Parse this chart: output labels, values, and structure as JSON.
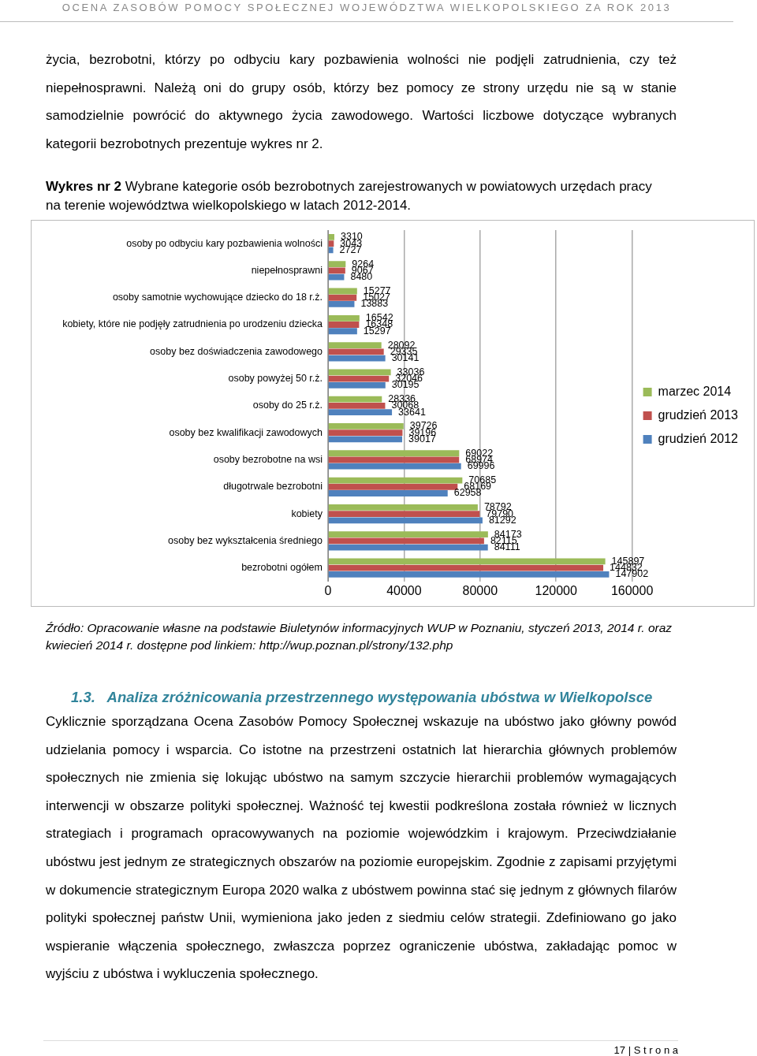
{
  "chart_data": {
    "type": "bar",
    "orientation": "horizontal",
    "title": "Wykres nr 2",
    "subtitle": "Wybrane kategorie osób bezrobotnych zarejestrowanych w powiatowych urzędach pracy na terenie województwa wielkopolskiego w latach 2012-2014.",
    "categories": [
      "osoby po odbyciu kary pozbawienia wolności",
      "niepełnosprawni",
      "osoby samotnie wychowujące dziecko do 18 r.ż.",
      "kobiety, które nie podjęły zatrudnienia po urodzeniu dziecka",
      "osoby bez doświadczenia zawodowego",
      "osoby powyżej 50 r.ż.",
      "osoby do 25 r.ż.",
      "osoby bez kwalifikacji zawodowych",
      "osoby bezrobotne na wsi",
      "długotrwale bezrobotni",
      "kobiety",
      "osoby bez wykształcenia średniego",
      "bezrobotni ogółem"
    ],
    "series": [
      {
        "name": "marzec 2014",
        "color": "#9bbb59",
        "values": [
          3310,
          9264,
          15277,
          16542,
          28092,
          33036,
          28336,
          39726,
          69022,
          70685,
          78792,
          84173,
          145897
        ]
      },
      {
        "name": "grudzień 2013",
        "color": "#c0504d",
        "values": [
          3043,
          9067,
          15027,
          16348,
          29335,
          32046,
          30068,
          39196,
          68974,
          68169,
          79790,
          82115,
          144832
        ]
      },
      {
        "name": "grudzień 2012",
        "color": "#4f81bd",
        "values": [
          2727,
          8480,
          13883,
          15297,
          30141,
          30195,
          33641,
          39017,
          69996,
          62958,
          81292,
          84111,
          147902
        ]
      }
    ],
    "xlim": [
      0,
      160000
    ],
    "xticks": [
      0,
      40000,
      80000,
      120000,
      160000
    ],
    "grid": "x",
    "legend": "right",
    "data_labels": true,
    "annotations": [
      "OCENA ZASOBÓW POMOCY SPOŁECZNEJ WOJEWÓDZTWA WIELKOPOLSKIEGO ZA ROK 2013",
      "życia, bezrobotni, którzy po odbyciu kary pozbawienia wolności nie podjęli zatrudnienia, czy też niepełnosprawni. Należą oni do grupy osób, którzy bez pomocy ze strony urzędu nie są w stanie samodzielnie powrócić do aktywnego życia zawodowego. Wartości liczbowe dotyczące wybranych kategorii bezrobotnych prezentuje wykres nr 2.",
      "Źródło: Opracowanie własne na podstawie Biuletynów informacyjnych WUP w Poznaniu, styczeń 2013, 2014 r. oraz kwiecień 2014 r. dostępne pod linkiem: http://wup.poznan.pl/strony/132.php",
      "1.3.   Analiza zróżnicowania przestrzennego występowania ubóstwa w Wielkopolsce",
      "Cyklicznie sporządzana Ocena Zasobów Pomocy Społecznej wskazuje na ubóstwo jako główny powód udzielania pomocy i wsparcia. Co istotne na przestrzeni ostatnich lat hierarchia głównych problemów społecznych nie zmienia się lokując ubóstwo na samym szczycie hierarchii problemów wymagających interwencji w obszarze polityki społecznej. Ważność tej kwestii podkreślona została również w licznych strategiach i programach opracowywanych na poziomie wojewódzkim i krajowym. Przeciwdziałanie ubóstwu jest jednym ze strategicznych obszarów na poziomie europejskim. Zgodnie z zapisami przyjętymi w dokumencie strategicznym Europa 2020 walka z ubóstwem powinna stać się jednym z głównych filarów polityki społecznej państw Unii, wymieniona jako jeden z siedmiu celów strategii. Zdefiniowano go jako wspieranie włączenia społecznego, zwłaszcza poprzez ograniczenie ubóstwa, zakładając pomoc w wyjściu z ubóstwa i wykluczenia społecznego.",
      "17 | S t r o n a"
    ]
  }
}
